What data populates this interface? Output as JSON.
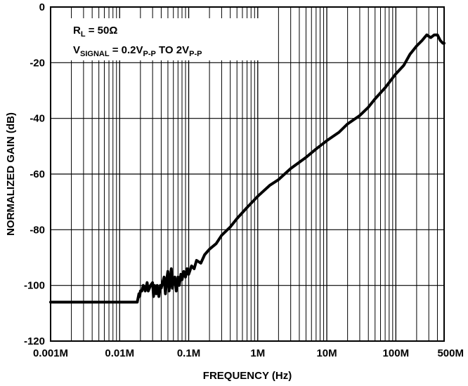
{
  "chart_data": {
    "type": "line",
    "title": "",
    "xlabel": "FREQUENCY (Hz)",
    "ylabel": "NORMALIZED GAIN (dB)",
    "x_scale": "log",
    "xlim": [
      0.001,
      500
    ],
    "ylim": [
      -120,
      0
    ],
    "x_units": "MHz",
    "grid": true,
    "x_tick_values": [
      0.001,
      0.01,
      0.1,
      1,
      10,
      100,
      500
    ],
    "x_tick_labels": [
      "0.001M",
      "0.01M",
      "0.1M",
      "1M",
      "10M",
      "100M",
      "500M"
    ],
    "y_tick_values": [
      0,
      -20,
      -40,
      -60,
      -80,
      -100,
      -120
    ],
    "y_tick_labels": [
      "0",
      "-20",
      "-40",
      "-60",
      "-80",
      "-100",
      "-120"
    ],
    "annotations": {
      "line1_main": "R",
      "line1_sub": "L",
      "line1_rest": " = 50Ω",
      "line2_main": "V",
      "line2_sub": "SIGNAL",
      "line2_mid": " = 0.2V",
      "line2_sub2": "P-P",
      "line2_mid2": " TO 2V",
      "line2_sub3": "P-P"
    },
    "series": [
      {
        "color": "#000000",
        "x": [
          0.001,
          0.0013,
          0.0017,
          0.0022,
          0.003,
          0.004,
          0.005,
          0.0065,
          0.008,
          0.01,
          0.0125,
          0.015,
          0.017,
          0.018,
          0.019,
          0.0195,
          0.02,
          0.021,
          0.022,
          0.0235,
          0.025,
          0.026,
          0.028,
          0.03,
          0.031,
          0.032,
          0.034,
          0.035,
          0.037,
          0.039,
          0.04,
          0.042,
          0.044,
          0.046,
          0.048,
          0.05,
          0.052,
          0.054,
          0.056,
          0.058,
          0.06,
          0.063,
          0.066,
          0.07,
          0.073,
          0.077,
          0.08,
          0.085,
          0.09,
          0.095,
          0.1,
          0.11,
          0.12,
          0.13,
          0.15,
          0.17,
          0.2,
          0.25,
          0.3,
          0.4,
          0.5,
          0.7,
          1,
          1.5,
          2,
          3,
          5,
          7,
          10,
          15,
          20,
          30,
          40,
          50,
          70,
          100,
          130,
          160,
          200,
          240,
          280,
          320,
          360,
          400,
          440,
          480,
          500
        ],
        "y": [
          -106,
          -106,
          -106,
          -106,
          -106,
          -106,
          -106,
          -106,
          -106,
          -106,
          -106,
          -106,
          -106,
          -106,
          -103,
          -104,
          -102,
          -102,
          -100,
          -102,
          -99,
          -102,
          -100,
          -99,
          -104,
          -100,
          -103,
          -100,
          -104,
          -100,
          -101,
          -99,
          -97,
          -103,
          -98,
          -95,
          -102,
          -98,
          -94,
          -101,
          -98,
          -97,
          -102,
          -97,
          -100,
          -96,
          -98,
          -95,
          -97,
          -94,
          -96,
          -93,
          -94,
          -91,
          -92,
          -89,
          -87,
          -85,
          -82,
          -79,
          -76,
          -72,
          -68,
          -64,
          -62,
          -58,
          -54,
          -51,
          -48,
          -45,
          -42,
          -39,
          -36,
          -33,
          -29,
          -24,
          -21,
          -17,
          -14,
          -12,
          -10,
          -11,
          -10,
          -10,
          -12,
          -13,
          -13
        ]
      }
    ]
  }
}
